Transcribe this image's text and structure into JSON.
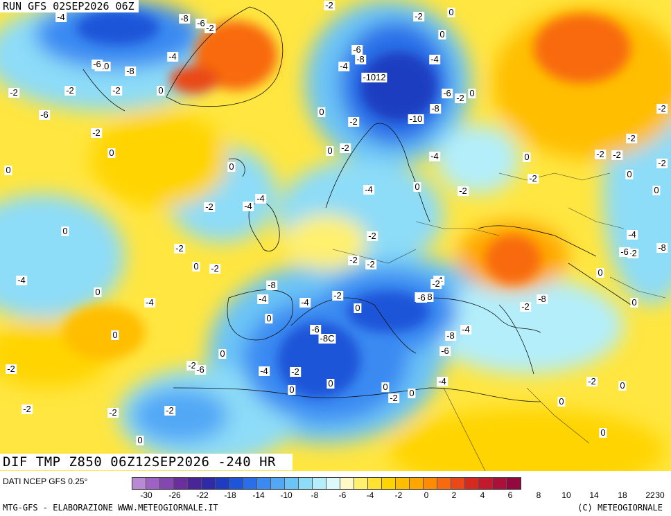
{
  "header": {
    "run_title": "RUN GFS 02SEP2026 06Z"
  },
  "product_title": "DIF TMP Z850 06Z12SEP2026 -240 HR",
  "footer": {
    "data_source": "DATI NCEP GFS 0.25°",
    "left_text": "MTG-GFS - ELABORAZIONE WWW.METEOGIORNALE.IT",
    "right_text": "(C) METEOGIORNALE"
  },
  "legend": {
    "colors": [
      "#b98ad4",
      "#9e62c4",
      "#8446b0",
      "#6a2f9c",
      "#4a2598",
      "#2f2aa8",
      "#1f3cc0",
      "#1e55d8",
      "#2a6fe8",
      "#3a8af2",
      "#52a8f5",
      "#6cc4f6",
      "#8ddcf8",
      "#b3eefa",
      "#dcf9fb",
      "#fff9c8",
      "#fff06e",
      "#ffe330",
      "#ffd400",
      "#ffbe00",
      "#ffa600",
      "#ff8c00",
      "#f86a10",
      "#ea4818",
      "#d62a20",
      "#c21a2c",
      "#aa1038",
      "#940840"
    ],
    "ticks": [
      "-30",
      "-26",
      "-22",
      "-18",
      "-14",
      "-10",
      "-8",
      "-6",
      "-4",
      "-2",
      "0",
      "2",
      "4",
      "6",
      "8",
      "10",
      "14",
      "18",
      "22",
      "30"
    ]
  },
  "labels": [
    "-4",
    "-8",
    "-6",
    "-2",
    "-10",
    "-2",
    "-6",
    "-2",
    "0",
    "-6",
    "-8",
    "-4",
    "-6",
    "-8",
    "-4",
    "-1012",
    "-4",
    "-6",
    "-2",
    "0",
    "-2",
    "-2",
    "-2",
    "0",
    "-2",
    "-8",
    "0",
    "-10",
    "0",
    "-2",
    "-2",
    "0",
    "-2",
    "0",
    "0",
    "0",
    "-2",
    "-2",
    "-4",
    "-2",
    "-4",
    "-2",
    "0",
    "-2",
    "-4",
    "-4",
    "0",
    "-2",
    "-2",
    "0",
    "0",
    "-2",
    "0",
    "-2",
    "-2",
    "0",
    "-4",
    "0",
    "-4",
    "-2",
    "-2",
    "-4",
    "-2",
    "0",
    "0",
    "-8",
    "-4",
    "-6-8",
    "-4",
    "-2",
    "-6",
    "-8C",
    "-2",
    "-6",
    "-8",
    "-4",
    "-2",
    "-8",
    "-4",
    "0",
    "0",
    "-2",
    "-6",
    "-8",
    "-6",
    "-4",
    "-2",
    "0",
    "0",
    "-2",
    "0",
    "0",
    "0",
    "0",
    "-2",
    "-4",
    "-2",
    "0",
    "0",
    "0",
    "0",
    "-2",
    "-6",
    "-2",
    "-2"
  ]
}
